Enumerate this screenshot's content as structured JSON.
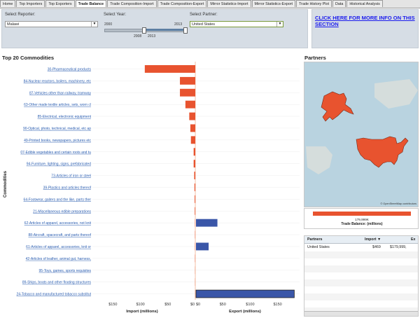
{
  "tabs": [
    "Home",
    "Top Importers",
    "Top Exporters",
    "Trade Balance",
    "Trade Composition-Import",
    "Trade Composition-Export",
    "Mirror Statistics-Import",
    "Mirror Statistics-Export",
    "Trade History Plot",
    "Data",
    "Historical Analysis"
  ],
  "active_tab": "Trade Balance",
  "filters": {
    "reporter_label": "Select Reporter:",
    "reporter_value": "Malawi",
    "year_label": "Select Year:",
    "year_min": "2000",
    "year_max": "2013",
    "year_sel_start": "2008",
    "year_sel_end": "2013",
    "partner_label": "Select Partner:",
    "partner_value": "United States"
  },
  "info_link": "CLICK HERE FOR MORE INFO ON THIS SECTION",
  "commodities_title": "Top 20 Commodities",
  "partners_title": "Partners",
  "chart_data": {
    "type": "bar",
    "orientation": "horizontal",
    "categories": [
      "30-Pharmaceutical products",
      "84-Nuclear reactors, boilers, machinery, etc",
      "87-Vehicles other than railway, tramway",
      "63-Other made textile articles, sets, worn cl",
      "85-Electrical, electronic equipment",
      "90-Optical, photo, technical, medical, etc ap",
      "49-Printed books, newspapers, pictures etc",
      "07-Edible vegetables and certain roots and tu",
      "94-Furniture, lighting, signs, prefabricated",
      "73-Articles of iron or steel",
      "39-Plastics and articles thereof",
      "64-Footwear, gaiters and the like, parts ther",
      "21-Miscellaneous edible preparations",
      "62-Articles of apparel, accessories, not knit",
      "88-Aircraft, spacecraft, and parts thereof",
      "61-Articles of apparel, accessories, knit or",
      "42-Articles of leather, animal gut, harness,",
      "95-Toys, games, sports requisites",
      "89-Ships, boats and other floating structures",
      "24-Tobacco and manufactured tobacco substitut"
    ],
    "import_values": [
      -92,
      -28,
      -28,
      -18,
      -11,
      -9,
      -8,
      -3,
      -3,
      -2,
      -1.5,
      -1.2,
      -1,
      -0.5,
      -0.5,
      -0.5,
      -0.5,
      -0.3,
      -0.3,
      -0.2
    ],
    "export_values": [
      0,
      0,
      0,
      0,
      0,
      0,
      0,
      0,
      0,
      0,
      0,
      0,
      0,
      39,
      0,
      23,
      0,
      0,
      0,
      179
    ],
    "xlabel_left": "Import (millions)",
    "xlabel_right": "Export (millions)",
    "ylabel": "Commodities",
    "tick_labels": [
      "$150",
      "$100",
      "$50",
      "$0",
      "$0",
      "$50",
      "$100",
      "$150"
    ],
    "xlim": [
      -190,
      190
    ],
    "colors": {
      "import": "#e8532f",
      "export": "#3a56a8"
    }
  },
  "map": {
    "credit": "© OpenStreetMap contributors"
  },
  "balance": {
    "value": "179,999K",
    "label": "Trade Balance: (millions)",
    "color": "#e8532f"
  },
  "partners_table": {
    "headers": [
      "Partners",
      "Import",
      "Ex"
    ],
    "rows": [
      [
        "United States",
        "$469",
        "$179,999,"
      ]
    ]
  }
}
